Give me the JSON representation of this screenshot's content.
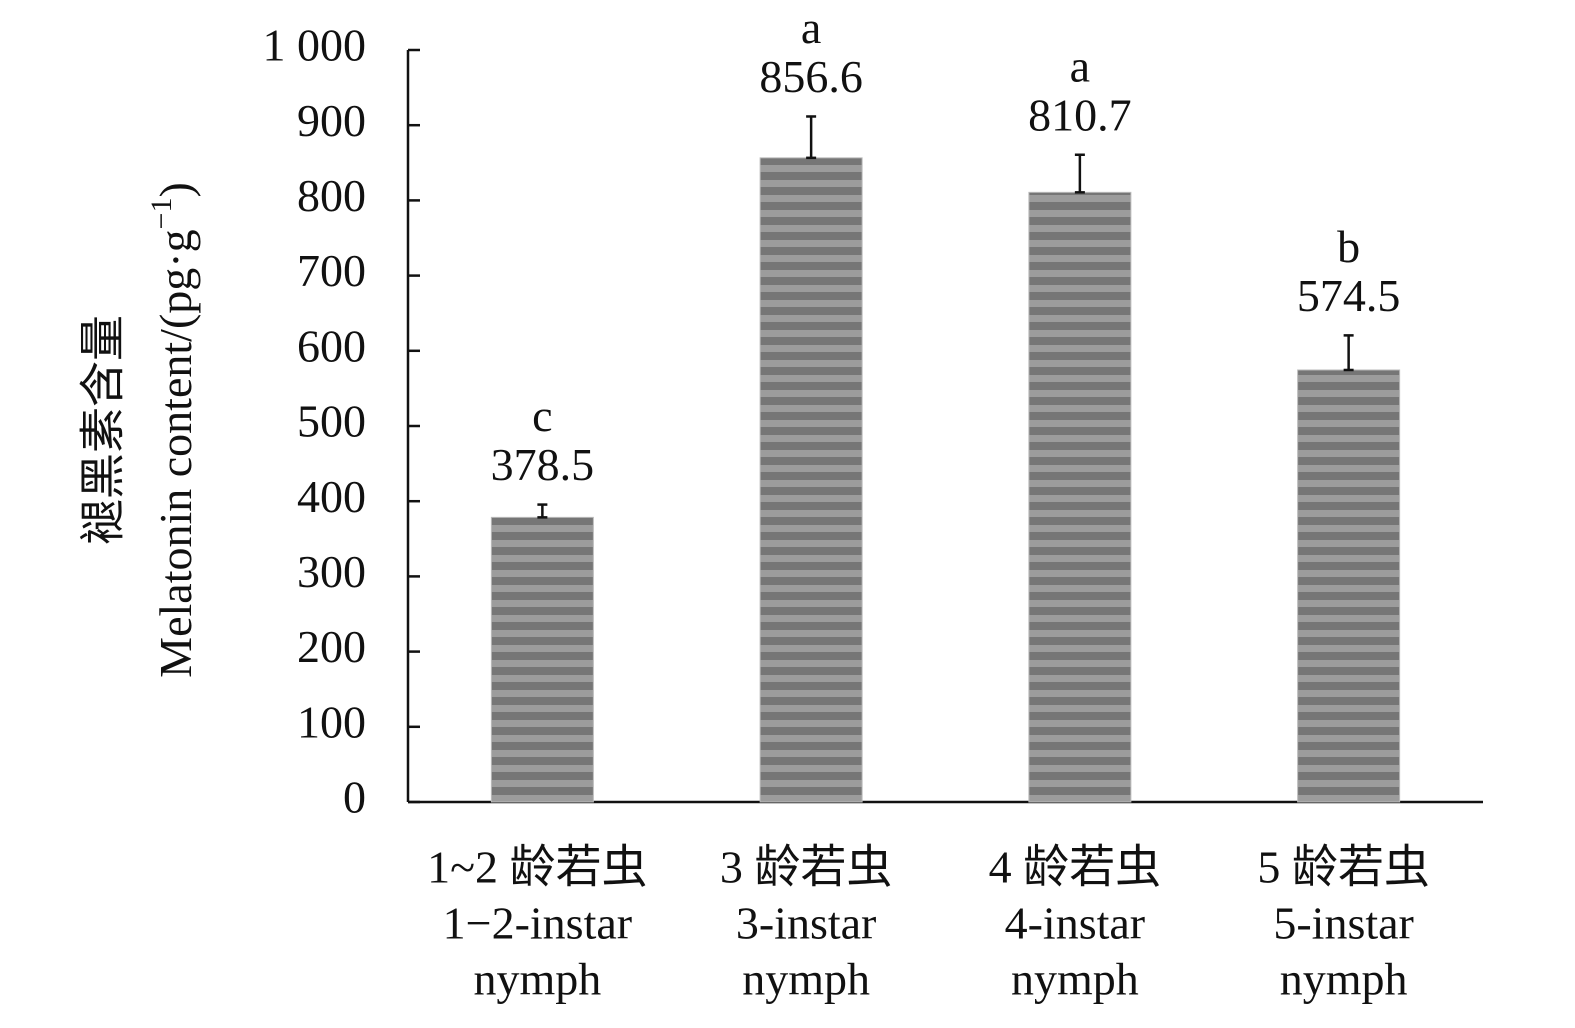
{
  "chart_data": {
    "type": "bar",
    "ylabel": {
      "zh": "褪黑素含量",
      "en": "Melatonin content/(pg·g",
      "sup": "−1",
      "close": ")"
    },
    "categories": [
      [
        "1~2 龄若虫",
        "1−2-instar",
        "nymph"
      ],
      [
        "3 龄若虫",
        "3-instar",
        "nymph"
      ],
      [
        "4 龄若虫",
        "4-instar",
        "nymph"
      ],
      [
        "5 龄若虫",
        "5-instar",
        "nymph"
      ]
    ],
    "values": [
      378.5,
      856.6,
      810.7,
      574.5
    ],
    "errors": [
      17,
      55,
      50,
      46
    ],
    "significance": [
      "c",
      "a",
      "a",
      "b"
    ],
    "color": "#767676",
    "ylim": [
      0,
      1000
    ],
    "yticks": [
      0,
      100,
      200,
      300,
      400,
      500,
      600,
      700,
      800,
      900,
      {
        "value": 1000,
        "label": "1 000"
      }
    ]
  }
}
